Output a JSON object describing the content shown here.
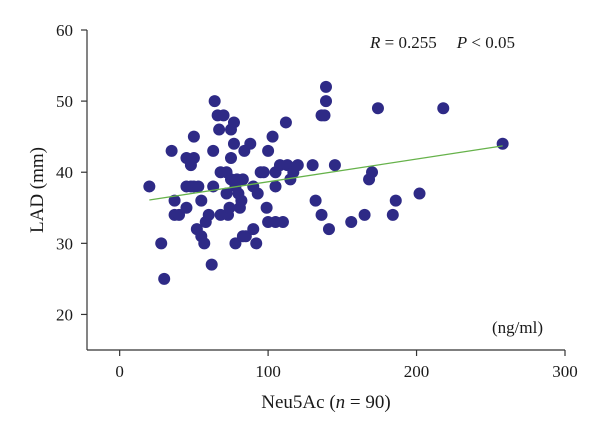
{
  "chart_data": {
    "type": "scatter",
    "xlabel_prefix": "Neu5Ac (",
    "xlabel_n": "n",
    "xlabel_suffix": " = 90)",
    "ylabel": "LAD (mm)",
    "x_unit_note": "(ng/ml)",
    "annotation": {
      "r_symbol": "R",
      "r_value": " = 0.255",
      "p_symbol": "P",
      "p_value": " < 0.05"
    },
    "xlim": [
      -22,
      300
    ],
    "ylim": [
      15,
      60
    ],
    "x_ticks": [
      0,
      100,
      200,
      300
    ],
    "y_ticks": [
      20,
      30,
      40,
      50,
      60
    ],
    "point_color": "#2e2a86",
    "trend_color": "#66b24a",
    "trendline": {
      "x": [
        20,
        258
      ],
      "y": [
        36.1,
        43.7
      ]
    },
    "points": [
      [
        20,
        38
      ],
      [
        28,
        30
      ],
      [
        30,
        25
      ],
      [
        35,
        43
      ],
      [
        37,
        34
      ],
      [
        40,
        34
      ],
      [
        37,
        36
      ],
      [
        45,
        38
      ],
      [
        45,
        35
      ],
      [
        45,
        42
      ],
      [
        48,
        41
      ],
      [
        48,
        38
      ],
      [
        50,
        45
      ],
      [
        50,
        42
      ],
      [
        52,
        32
      ],
      [
        50,
        38
      ],
      [
        53,
        38
      ],
      [
        55,
        36
      ],
      [
        55,
        31
      ],
      [
        57,
        30
      ],
      [
        58,
        33
      ],
      [
        60,
        34
      ],
      [
        62,
        27
      ],
      [
        63,
        38
      ],
      [
        63,
        43
      ],
      [
        64,
        50
      ],
      [
        66,
        48
      ],
      [
        67,
        46
      ],
      [
        68,
        40
      ],
      [
        68,
        34
      ],
      [
        70,
        48
      ],
      [
        72,
        40
      ],
      [
        72,
        37
      ],
      [
        73,
        34
      ],
      [
        74,
        35
      ],
      [
        75,
        46
      ],
      [
        75,
        42
      ],
      [
        75,
        39
      ],
      [
        77,
        47
      ],
      [
        77,
        44
      ],
      [
        78,
        38
      ],
      [
        78,
        30
      ],
      [
        79,
        39
      ],
      [
        80,
        37
      ],
      [
        81,
        35
      ],
      [
        82,
        36
      ],
      [
        83,
        31
      ],
      [
        83,
        39
      ],
      [
        84,
        43
      ],
      [
        85,
        31
      ],
      [
        88,
        44
      ],
      [
        90,
        38
      ],
      [
        90,
        32
      ],
      [
        92,
        30
      ],
      [
        93,
        37
      ],
      [
        95,
        40
      ],
      [
        97,
        40
      ],
      [
        99,
        35
      ],
      [
        100,
        43
      ],
      [
        100,
        33
      ],
      [
        103,
        45
      ],
      [
        105,
        38
      ],
      [
        105,
        40
      ],
      [
        105,
        33
      ],
      [
        108,
        41
      ],
      [
        110,
        33
      ],
      [
        112,
        47
      ],
      [
        113,
        41
      ],
      [
        115,
        39
      ],
      [
        117,
        40
      ],
      [
        120,
        41
      ],
      [
        130,
        41
      ],
      [
        132,
        36
      ],
      [
        136,
        34
      ],
      [
        136,
        48
      ],
      [
        138,
        48
      ],
      [
        139,
        50
      ],
      [
        139,
        52
      ],
      [
        141,
        32
      ],
      [
        145,
        41
      ],
      [
        156,
        33
      ],
      [
        165,
        34
      ],
      [
        168,
        39
      ],
      [
        170,
        40
      ],
      [
        174,
        49
      ],
      [
        184,
        34
      ],
      [
        186,
        36
      ],
      [
        202,
        37
      ],
      [
        218,
        49
      ],
      [
        258,
        44
      ]
    ]
  }
}
